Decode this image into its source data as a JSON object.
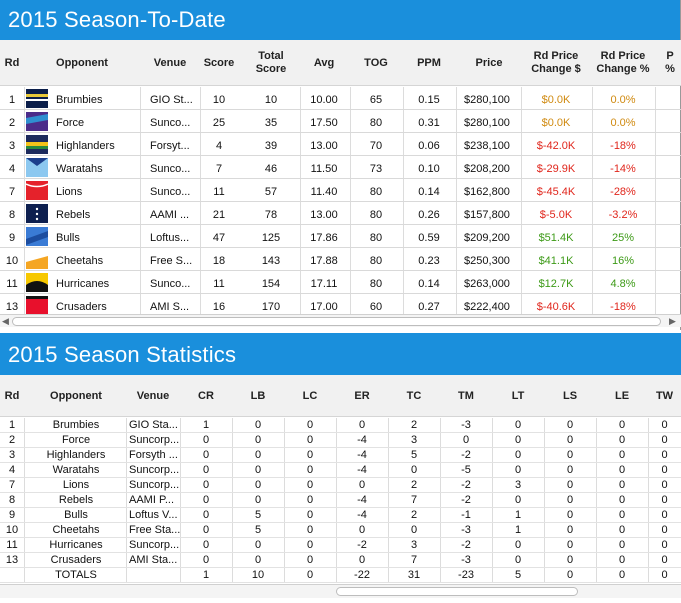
{
  "season_to_date": {
    "title": "2015 Season-To-Date",
    "headers": [
      "Rd",
      "Opponent",
      "Venue",
      "Score",
      "Total\nScore",
      "Avg",
      "TOG",
      "PPM",
      "Price",
      "Rd Price\nChange $",
      "Rd Price\nChange %",
      "P\n%"
    ],
    "rows": [
      {
        "rd": "1",
        "opponent": "Brumbies",
        "venue": "GIO St...",
        "score": "10",
        "total": "10",
        "avg": "10.00",
        "tog": "65",
        "ppm": "0.15",
        "price": "$280,100",
        "chg": "$0.0K",
        "chgpct": "0.0%",
        "sign": "zero",
        "jersey": "brumbies"
      },
      {
        "rd": "2",
        "opponent": "Force",
        "venue": "Sunco...",
        "score": "25",
        "total": "35",
        "avg": "17.50",
        "tog": "80",
        "ppm": "0.31",
        "price": "$280,100",
        "chg": "$0.0K",
        "chgpct": "0.0%",
        "sign": "zero",
        "jersey": "force"
      },
      {
        "rd": "3",
        "opponent": "Highlanders",
        "venue": "Forsyt...",
        "score": "4",
        "total": "39",
        "avg": "13.00",
        "tog": "70",
        "ppm": "0.06",
        "price": "$238,100",
        "chg": "$-42.0K",
        "chgpct": "-18%",
        "sign": "neg",
        "jersey": "highlanders"
      },
      {
        "rd": "4",
        "opponent": "Waratahs",
        "venue": "Sunco...",
        "score": "7",
        "total": "46",
        "avg": "11.50",
        "tog": "73",
        "ppm": "0.10",
        "price": "$208,200",
        "chg": "$-29.9K",
        "chgpct": "-14%",
        "sign": "neg",
        "jersey": "waratahs"
      },
      {
        "rd": "7",
        "opponent": "Lions",
        "venue": "Sunco...",
        "score": "11",
        "total": "57",
        "avg": "11.40",
        "tog": "80",
        "ppm": "0.14",
        "price": "$162,800",
        "chg": "$-45.4K",
        "chgpct": "-28%",
        "sign": "neg",
        "jersey": "lions"
      },
      {
        "rd": "8",
        "opponent": "Rebels",
        "venue": "AAMI ...",
        "score": "21",
        "total": "78",
        "avg": "13.00",
        "tog": "80",
        "ppm": "0.26",
        "price": "$157,800",
        "chg": "$-5.0K",
        "chgpct": "-3.2%",
        "sign": "neg",
        "jersey": "rebels"
      },
      {
        "rd": "9",
        "opponent": "Bulls",
        "venue": "Loftus...",
        "score": "47",
        "total": "125",
        "avg": "17.86",
        "tog": "80",
        "ppm": "0.59",
        "price": "$209,200",
        "chg": "$51.4K",
        "chgpct": "25%",
        "sign": "pos",
        "jersey": "bulls"
      },
      {
        "rd": "10",
        "opponent": "Cheetahs",
        "venue": "Free S...",
        "score": "18",
        "total": "143",
        "avg": "17.88",
        "tog": "80",
        "ppm": "0.23",
        "price": "$250,300",
        "chg": "$41.1K",
        "chgpct": "16%",
        "sign": "pos",
        "jersey": "cheetahs"
      },
      {
        "rd": "11",
        "opponent": "Hurricanes",
        "venue": "Sunco...",
        "score": "11",
        "total": "154",
        "avg": "17.11",
        "tog": "80",
        "ppm": "0.14",
        "price": "$263,000",
        "chg": "$12.7K",
        "chgpct": "4.8%",
        "sign": "pos",
        "jersey": "hurricanes"
      },
      {
        "rd": "13",
        "opponent": "Crusaders",
        "venue": "AMI S...",
        "score": "16",
        "total": "170",
        "avg": "17.00",
        "tog": "60",
        "ppm": "0.27",
        "price": "$222,400",
        "chg": "$-40.6K",
        "chgpct": "-18%",
        "sign": "neg",
        "jersey": "crusaders"
      }
    ]
  },
  "season_statistics": {
    "title": "2015 Season Statistics",
    "headers": [
      "Rd",
      "Opponent",
      "Venue",
      "CR",
      "LB",
      "LC",
      "ER",
      "TC",
      "TM",
      "LT",
      "LS",
      "LE",
      "TW"
    ],
    "rows": [
      {
        "rd": "1",
        "opponent": "Brumbies",
        "venue": "GIO Sta...",
        "cr": "1",
        "lb": "0",
        "lc": "0",
        "er": "0",
        "tc": "2",
        "tm": "-3",
        "lt": "0",
        "ls": "0",
        "le": "0",
        "tw": "0"
      },
      {
        "rd": "2",
        "opponent": "Force",
        "venue": "Suncorp...",
        "cr": "0",
        "lb": "0",
        "lc": "0",
        "er": "-4",
        "tc": "3",
        "tm": "0",
        "lt": "0",
        "ls": "0",
        "le": "0",
        "tw": "0"
      },
      {
        "rd": "3",
        "opponent": "Highlanders",
        "venue": "Forsyth ...",
        "cr": "0",
        "lb": "0",
        "lc": "0",
        "er": "-4",
        "tc": "5",
        "tm": "-2",
        "lt": "0",
        "ls": "0",
        "le": "0",
        "tw": "0"
      },
      {
        "rd": "4",
        "opponent": "Waratahs",
        "venue": "Suncorp...",
        "cr": "0",
        "lb": "0",
        "lc": "0",
        "er": "-4",
        "tc": "0",
        "tm": "-5",
        "lt": "0",
        "ls": "0",
        "le": "0",
        "tw": "0"
      },
      {
        "rd": "7",
        "opponent": "Lions",
        "venue": "Suncorp...",
        "cr": "0",
        "lb": "0",
        "lc": "0",
        "er": "0",
        "tc": "2",
        "tm": "-2",
        "lt": "3",
        "ls": "0",
        "le": "0",
        "tw": "0"
      },
      {
        "rd": "8",
        "opponent": "Rebels",
        "venue": "AAMI P...",
        "cr": "0",
        "lb": "0",
        "lc": "0",
        "er": "-4",
        "tc": "7",
        "tm": "-2",
        "lt": "0",
        "ls": "0",
        "le": "0",
        "tw": "0"
      },
      {
        "rd": "9",
        "opponent": "Bulls",
        "venue": "Loftus V...",
        "cr": "0",
        "lb": "5",
        "lc": "0",
        "er": "-4",
        "tc": "2",
        "tm": "-1",
        "lt": "1",
        "ls": "0",
        "le": "0",
        "tw": "0"
      },
      {
        "rd": "10",
        "opponent": "Cheetahs",
        "venue": "Free Sta...",
        "cr": "0",
        "lb": "5",
        "lc": "0",
        "er": "0",
        "tc": "0",
        "tm": "-3",
        "lt": "1",
        "ls": "0",
        "le": "0",
        "tw": "0"
      },
      {
        "rd": "11",
        "opponent": "Hurricanes",
        "venue": "Suncorp...",
        "cr": "0",
        "lb": "0",
        "lc": "0",
        "er": "-2",
        "tc": "3",
        "tm": "-2",
        "lt": "0",
        "ls": "0",
        "le": "0",
        "tw": "0"
      },
      {
        "rd": "13",
        "opponent": "Crusaders",
        "venue": "AMI Sta...",
        "cr": "0",
        "lb": "0",
        "lc": "0",
        "er": "0",
        "tc": "7",
        "tm": "-3",
        "lt": "0",
        "ls": "0",
        "le": "0",
        "tw": "0"
      }
    ],
    "totals": {
      "label": "TOTALS",
      "cr": "1",
      "lb": "10",
      "lc": "0",
      "er": "-22",
      "tc": "31",
      "tm": "-23",
      "lt": "5",
      "ls": "0",
      "le": "0",
      "tw": "0"
    }
  },
  "colors": {
    "header_blue": "#1a8fdc",
    "negative": "#e0261c",
    "positive": "#3d9a17",
    "neutral": "#d08a10"
  },
  "icons": {
    "scroll_left": "scroll-left-icon",
    "scroll_right": "scroll-right-icon"
  }
}
